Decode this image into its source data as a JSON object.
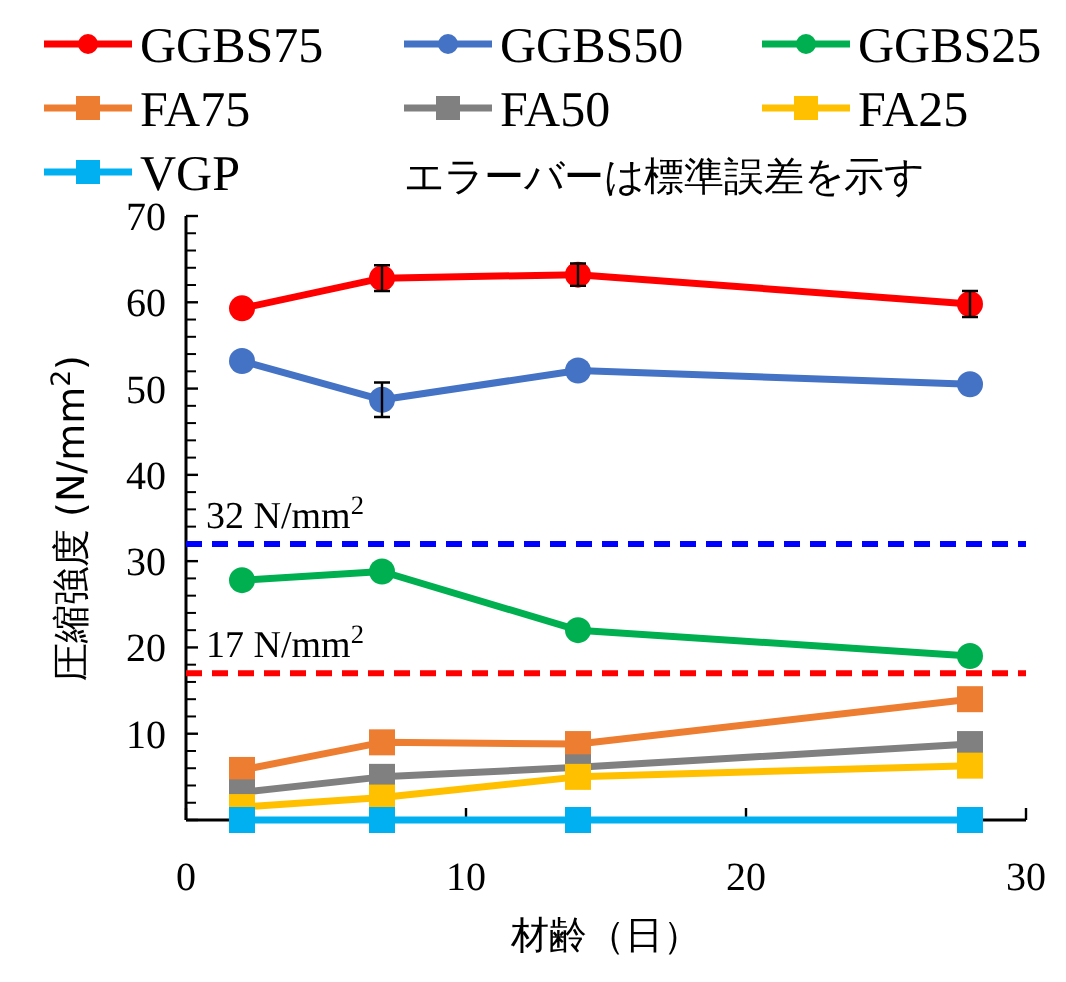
{
  "chart_data": {
    "type": "line",
    "xlabel": "材齢（日）",
    "ylabel": "圧縮強度 (N/mm$^{2}$)",
    "xlim": [
      0,
      30
    ],
    "ylim": [
      0,
      70
    ],
    "xticks": [
      0,
      10,
      20,
      30
    ],
    "yticks": [
      {
        "value": 0,
        "label": null
      },
      10,
      20,
      30,
      40,
      50,
      60,
      70
    ],
    "x": [
      2,
      7,
      14,
      28
    ],
    "legend": "top",
    "grid": false,
    "annotations": [
      "エラーバーは標準誤差を示す"
    ],
    "ref_lines": [
      {
        "axis": "y",
        "value": 32,
        "label": "32 N/mm$^{2}$",
        "color": "#0000ff",
        "line_style": "dashed"
      },
      {
        "axis": "y",
        "value": 17,
        "label": "17 N/mm$^{2}$",
        "color": "#ff0000",
        "line_style": "dashed"
      }
    ],
    "series": [
      {
        "name": "GGBS75",
        "color": "#ff0000",
        "marker": "circle",
        "values": [
          59.3,
          62.8,
          63.2,
          59.8
        ],
        "errors": [
          null,
          1.5,
          1.3,
          1.5
        ]
      },
      {
        "name": "GGBS50",
        "color": "#4472c4",
        "marker": "circle",
        "values": [
          53.2,
          48.7,
          52.1,
          50.5
        ],
        "errors": [
          null,
          2.0,
          null,
          null
        ]
      },
      {
        "name": "GGBS25",
        "color": "#00b050",
        "marker": "circle",
        "values": [
          27.8,
          28.8,
          22.0,
          19.0
        ]
      },
      {
        "name": "FA75",
        "color": "#ed7d31",
        "marker": "square",
        "values": [
          5.8,
          9.0,
          8.8,
          14.0
        ]
      },
      {
        "name": "FA50",
        "color": "#808080",
        "marker": "square",
        "values": [
          3.2,
          5.0,
          6.1,
          8.8
        ]
      },
      {
        "name": "FA25",
        "color": "#ffc000",
        "marker": "square",
        "values": [
          1.5,
          2.6,
          5.0,
          6.3
        ]
      },
      {
        "name": "VGP",
        "color": "#00b0f0",
        "marker": "square",
        "values": [
          0,
          0,
          0,
          0
        ]
      }
    ]
  }
}
